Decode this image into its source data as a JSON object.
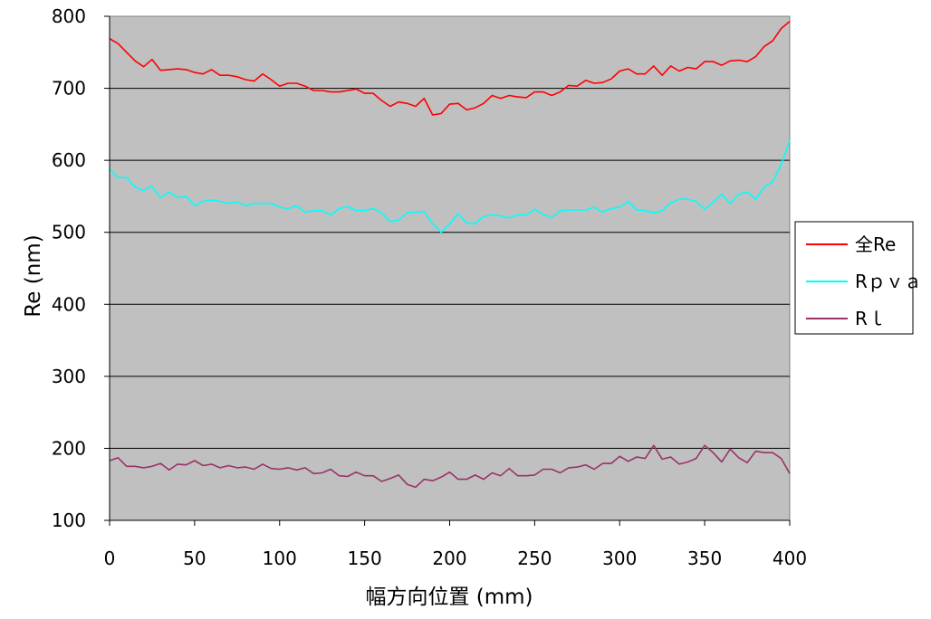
{
  "chart_data": {
    "type": "line",
    "xlabel": "幅方向位置 (mm)",
    "ylabel": "Re (nm)",
    "xlim": [
      0,
      400
    ],
    "ylim": [
      100,
      800
    ],
    "x_ticks": [
      0,
      50,
      100,
      150,
      200,
      250,
      300,
      350,
      400
    ],
    "y_ticks": [
      100,
      200,
      300,
      400,
      500,
      600,
      700,
      800
    ],
    "grid": "horizontal",
    "background": "#c0c0c0",
    "legend_position": "right",
    "x": [
      0,
      5,
      10,
      15,
      20,
      25,
      30,
      35,
      40,
      45,
      50,
      55,
      60,
      65,
      70,
      75,
      80,
      85,
      90,
      95,
      100,
      105,
      110,
      115,
      120,
      125,
      130,
      135,
      140,
      145,
      150,
      155,
      160,
      165,
      170,
      175,
      180,
      185,
      190,
      195,
      200,
      205,
      210,
      215,
      220,
      225,
      230,
      235,
      240,
      245,
      250,
      255,
      260,
      265,
      270,
      275,
      280,
      285,
      290,
      295,
      300,
      305,
      310,
      315,
      320,
      325,
      330,
      335,
      340,
      345,
      350,
      355,
      360,
      365,
      370,
      375,
      380,
      385,
      390,
      395,
      400
    ],
    "series": [
      {
        "name": "全Re",
        "color": "#ff0000",
        "values": [
          769,
          762,
          750,
          738,
          730,
          740,
          725,
          726,
          727,
          726,
          722,
          720,
          726,
          718,
          718,
          716,
          712,
          710,
          720,
          712,
          703,
          707,
          707,
          703,
          697,
          697,
          695,
          695,
          697,
          699,
          693,
          693,
          683,
          675,
          681,
          679,
          675,
          686,
          663,
          665,
          678,
          679,
          670,
          673,
          679,
          690,
          686,
          690,
          688,
          687,
          695,
          695,
          690,
          695,
          704,
          703,
          711,
          707,
          708,
          713,
          724,
          727,
          720,
          720,
          731,
          718,
          731,
          724,
          729,
          727,
          737,
          737,
          732,
          738,
          739,
          737,
          744,
          758,
          766,
          783,
          793
        ]
      },
      {
        "name": "Rｐｖａ",
        "color": "#00ffff",
        "values": [
          588,
          576,
          576,
          563,
          558,
          564,
          548,
          556,
          548,
          550,
          537,
          543,
          545,
          543,
          540,
          542,
          537,
          540,
          540,
          540,
          535,
          533,
          537,
          528,
          530,
          530,
          524,
          533,
          536,
          530,
          530,
          533,
          527,
          515,
          517,
          527,
          528,
          529,
          512,
          500,
          512,
          526,
          513,
          512,
          522,
          524,
          523,
          520,
          524,
          524,
          532,
          525,
          520,
          530,
          531,
          531,
          531,
          535,
          528,
          533,
          535,
          543,
          531,
          530,
          527,
          530,
          541,
          546,
          546,
          543,
          532,
          542,
          553,
          540,
          553,
          556,
          546,
          563,
          570,
          594,
          628
        ]
      },
      {
        "name": "Rｌ",
        "color": "#993366",
        "values": [
          183,
          187,
          175,
          175,
          173,
          175,
          179,
          170,
          178,
          177,
          183,
          176,
          178,
          173,
          176,
          173,
          174,
          171,
          178,
          172,
          171,
          173,
          170,
          173,
          165,
          166,
          171,
          162,
          161,
          167,
          162,
          162,
          154,
          158,
          163,
          150,
          146,
          157,
          155,
          160,
          167,
          157,
          157,
          163,
          157,
          166,
          162,
          172,
          162,
          162,
          163,
          171,
          171,
          166,
          173,
          174,
          177,
          171,
          179,
          179,
          189,
          182,
          188,
          186,
          204,
          185,
          188,
          178,
          181,
          186,
          204,
          194,
          181,
          199,
          187,
          180,
          196,
          194,
          194,
          186,
          165
        ]
      }
    ]
  }
}
